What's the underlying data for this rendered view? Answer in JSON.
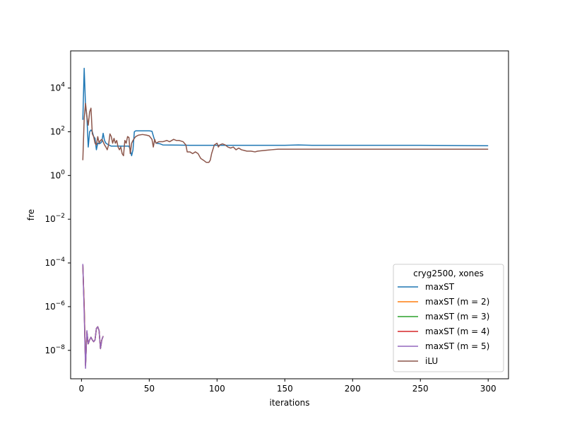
{
  "chart_data": {
    "type": "line",
    "title": "",
    "xlabel": "iterations",
    "ylabel": "fre",
    "xlim": [
      -8,
      315
    ],
    "ylim_log10": [
      -9.3,
      5.7
    ],
    "yscale": "log",
    "x_ticks": [
      0,
      50,
      100,
      150,
      200,
      250,
      300
    ],
    "x_tick_labels": [
      "0",
      "50",
      "100",
      "150",
      "200",
      "250",
      "300"
    ],
    "y_ticks_exponent": [
      4,
      2,
      0,
      -2,
      -4,
      -6,
      -8
    ],
    "y_tick_base": "10",
    "y_tick_exponents": [
      "4",
      "2",
      "0",
      "−2",
      "−4",
      "−6",
      "−8"
    ],
    "legend": {
      "title": "cryg2500, xones",
      "location": "lower-right",
      "entries": [
        "maxST",
        "maxST (m = 2)",
        "maxST (m = 3)",
        "maxST (m = 4)",
        "maxST (m = 5)",
        "iLU"
      ]
    },
    "series": [
      {
        "name": "maxST",
        "color": "#1f77b4",
        "points": [
          [
            1,
            350
          ],
          [
            2,
            80000
          ],
          [
            3,
            1500
          ],
          [
            4,
            500
          ],
          [
            5,
            20
          ],
          [
            6,
            100
          ],
          [
            7,
            120
          ],
          [
            8,
            100
          ],
          [
            9,
            60
          ],
          [
            10,
            50
          ],
          [
            11,
            15
          ],
          [
            12,
            30
          ],
          [
            13,
            28
          ],
          [
            14,
            30
          ],
          [
            15,
            35
          ],
          [
            16,
            85
          ],
          [
            17,
            40
          ],
          [
            18,
            30
          ],
          [
            20,
            25
          ],
          [
            22,
            22
          ],
          [
            25,
            22
          ],
          [
            30,
            22
          ],
          [
            35,
            22
          ],
          [
            36,
            15
          ],
          [
            37,
            8
          ],
          [
            38,
            15
          ],
          [
            39,
            100
          ],
          [
            40,
            110
          ],
          [
            45,
            110
          ],
          [
            50,
            110
          ],
          [
            52,
            105
          ],
          [
            54,
            40
          ],
          [
            55,
            30
          ],
          [
            58,
            28
          ],
          [
            60,
            25
          ],
          [
            80,
            24
          ],
          [
            100,
            24
          ],
          [
            120,
            24
          ],
          [
            150,
            24
          ],
          [
            160,
            25
          ],
          [
            170,
            24
          ],
          [
            200,
            24
          ],
          [
            250,
            24
          ],
          [
            300,
            23
          ]
        ]
      },
      {
        "name": "maxST (m = 2)",
        "color": "#ff7f0e",
        "points": [
          [
            1,
            8e-05
          ],
          [
            2,
            1e-06
          ],
          [
            3,
            2e-09
          ],
          [
            4,
            7e-08
          ],
          [
            5,
            2e-08
          ],
          [
            6,
            3e-08
          ],
          [
            7,
            4e-08
          ],
          [
            8,
            3e-08
          ],
          [
            9,
            2.5e-08
          ],
          [
            10,
            3e-08
          ],
          [
            11,
            1e-07
          ],
          [
            12,
            1.2e-07
          ],
          [
            13,
            8e-08
          ],
          [
            14,
            1.2e-08
          ],
          [
            15,
            3e-08
          ],
          [
            16,
            4.5e-08
          ]
        ]
      },
      {
        "name": "maxST (m = 3)",
        "color": "#2ca02c",
        "points": [
          [
            1,
            8e-05
          ],
          [
            2,
            1e-06
          ],
          [
            3,
            2e-09
          ],
          [
            4,
            7e-08
          ],
          [
            5,
            2e-08
          ],
          [
            6,
            3e-08
          ],
          [
            7,
            4e-08
          ],
          [
            8,
            3e-08
          ],
          [
            9,
            2.5e-08
          ],
          [
            10,
            3e-08
          ],
          [
            11,
            1e-07
          ],
          [
            12,
            1.2e-07
          ],
          [
            13,
            8e-08
          ],
          [
            14,
            1.2e-08
          ],
          [
            15,
            3e-08
          ],
          [
            16,
            4.5e-08
          ]
        ]
      },
      {
        "name": "maxST (m = 4)",
        "color": "#d62728",
        "points": [
          [
            1,
            8e-05
          ],
          [
            2,
            1e-06
          ],
          [
            3,
            2e-09
          ],
          [
            4,
            7e-08
          ],
          [
            5,
            2e-08
          ],
          [
            6,
            3e-08
          ],
          [
            7,
            4e-08
          ],
          [
            8,
            3e-08
          ],
          [
            9,
            2.5e-08
          ],
          [
            10,
            3e-08
          ],
          [
            11,
            1e-07
          ],
          [
            12,
            1.2e-07
          ],
          [
            13,
            8e-08
          ],
          [
            14,
            1.2e-08
          ],
          [
            15,
            3e-08
          ],
          [
            16,
            4.5e-08
          ]
        ]
      },
      {
        "name": "maxST (m = 5)",
        "color": "#9467bd",
        "points": [
          [
            1,
            9e-05
          ],
          [
            2,
            5e-07
          ],
          [
            3,
            1.5e-09
          ],
          [
            4,
            8e-08
          ],
          [
            5,
            2e-08
          ],
          [
            6,
            3e-08
          ],
          [
            7,
            4e-08
          ],
          [
            8,
            3e-08
          ],
          [
            9,
            2.5e-08
          ],
          [
            10,
            3e-08
          ],
          [
            11,
            1e-07
          ],
          [
            12,
            1.2e-07
          ],
          [
            13,
            8e-08
          ],
          [
            14,
            1.2e-08
          ],
          [
            15,
            3e-08
          ],
          [
            16,
            4.5e-08
          ]
        ]
      },
      {
        "name": "iLU",
        "color": "#8c564b",
        "points": [
          [
            1,
            5
          ],
          [
            2,
            400
          ],
          [
            3,
            2000
          ],
          [
            4,
            500
          ],
          [
            5,
            200
          ],
          [
            6,
            800
          ],
          [
            7,
            1200
          ],
          [
            8,
            80
          ],
          [
            9,
            60
          ],
          [
            10,
            30
          ],
          [
            11,
            25
          ],
          [
            12,
            60
          ],
          [
            13,
            30
          ],
          [
            14,
            40
          ],
          [
            15,
            45
          ],
          [
            16,
            35
          ],
          [
            17,
            25
          ],
          [
            18,
            20
          ],
          [
            19,
            15
          ],
          [
            20,
            25
          ],
          [
            21,
            80
          ],
          [
            22,
            60
          ],
          [
            23,
            30
          ],
          [
            24,
            50
          ],
          [
            25,
            30
          ],
          [
            26,
            40
          ],
          [
            27,
            20
          ],
          [
            28,
            15
          ],
          [
            29,
            20
          ],
          [
            30,
            10
          ],
          [
            31,
            8
          ],
          [
            32,
            40
          ],
          [
            33,
            30
          ],
          [
            34,
            60
          ],
          [
            35,
            55
          ],
          [
            36,
            10
          ],
          [
            37,
            30
          ],
          [
            38,
            40
          ],
          [
            39,
            50
          ],
          [
            40,
            60
          ],
          [
            42,
            70
          ],
          [
            45,
            75
          ],
          [
            48,
            70
          ],
          [
            50,
            65
          ],
          [
            52,
            45
          ],
          [
            53,
            20
          ],
          [
            54,
            45
          ],
          [
            55,
            30
          ],
          [
            57,
            35
          ],
          [
            60,
            35
          ],
          [
            63,
            40
          ],
          [
            65,
            35
          ],
          [
            68,
            45
          ],
          [
            70,
            40
          ],
          [
            72,
            40
          ],
          [
            75,
            35
          ],
          [
            77,
            25
          ],
          [
            78,
            12
          ],
          [
            80,
            12
          ],
          [
            82,
            10
          ],
          [
            84,
            12
          ],
          [
            86,
            10
          ],
          [
            88,
            6
          ],
          [
            90,
            5
          ],
          [
            92,
            4
          ],
          [
            94,
            4
          ],
          [
            95,
            5
          ],
          [
            96,
            10
          ],
          [
            98,
            25
          ],
          [
            100,
            30
          ],
          [
            101,
            20
          ],
          [
            102,
            25
          ],
          [
            104,
            28
          ],
          [
            106,
            25
          ],
          [
            108,
            20
          ],
          [
            110,
            18
          ],
          [
            112,
            20
          ],
          [
            114,
            15
          ],
          [
            116,
            18
          ],
          [
            118,
            15
          ],
          [
            120,
            14
          ],
          [
            122,
            13
          ],
          [
            125,
            13
          ],
          [
            128,
            12
          ],
          [
            130,
            13
          ],
          [
            135,
            14
          ],
          [
            140,
            15
          ],
          [
            145,
            16
          ],
          [
            150,
            16
          ],
          [
            160,
            16
          ],
          [
            170,
            16
          ],
          [
            180,
            16
          ],
          [
            200,
            16
          ],
          [
            250,
            16
          ],
          [
            300,
            16
          ]
        ]
      }
    ]
  }
}
